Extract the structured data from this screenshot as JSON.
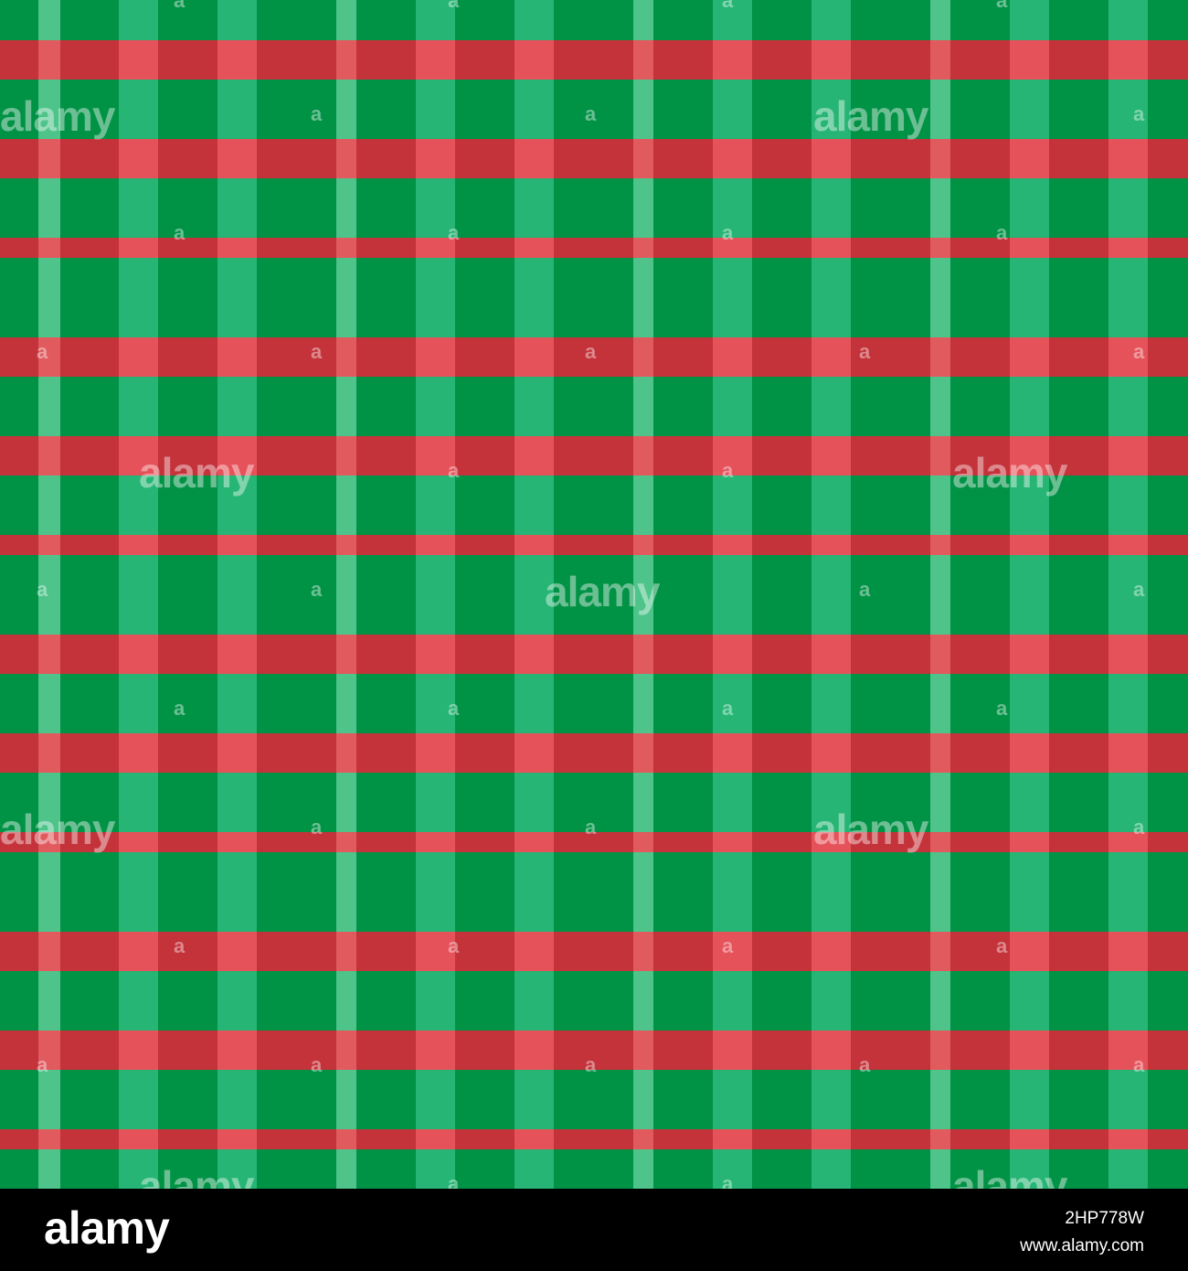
{
  "pattern": {
    "colors": {
      "background_green": "#009245",
      "light_green_stripe": "#26B574",
      "thin_green_stripe": "#4FC48A",
      "red_stripe": "#C4323A",
      "red_on_light_green": "#E5525A",
      "red_on_thin_green": "#E05A5E"
    }
  },
  "watermark": {
    "text": "alamy",
    "small_text": "a"
  },
  "footer": {
    "logo": "alamy",
    "image_code": "2HP778W",
    "url": "www.alamy.com"
  }
}
